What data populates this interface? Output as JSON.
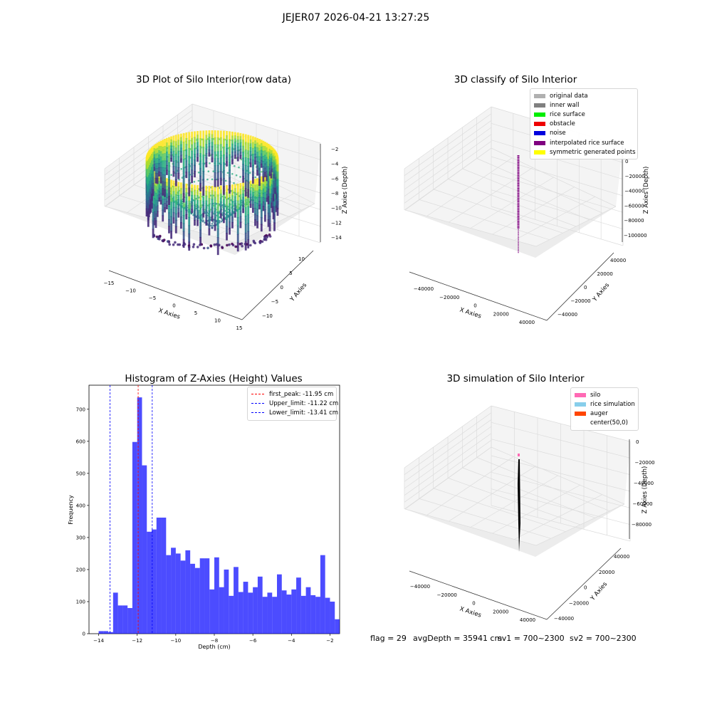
{
  "suptitle": "JEJER07 2026-04-21 13:27:25",
  "panel1": {
    "title": "3D Plot of Silo Interior(row data)",
    "xlabel": "X Axies",
    "ylabel": "Y Axies",
    "zlabel": "Z Axies (Depth)",
    "xticks": [
      "−15",
      "−10",
      "−5",
      "0",
      "5",
      "10",
      "15"
    ],
    "yticks": [
      "−10",
      "−5",
      "0",
      "5",
      "10"
    ],
    "zticks": [
      "−2",
      "−4",
      "−6",
      "−8",
      "−10",
      "−12",
      "−14"
    ],
    "colormap": "viridis"
  },
  "panel2": {
    "title": "3D classify of Silo Interior",
    "xlabel": "X Axies",
    "ylabel": "Y Axies",
    "zlabel": "Z Axies (Depth)",
    "xticks": [
      "−40000",
      "−20000",
      "0",
      "20000",
      "40000"
    ],
    "yticks": [
      "−40000",
      "−20000",
      "0",
      "20000",
      "40000"
    ],
    "zticks": [
      "0",
      "−20000",
      "−40000",
      "−60000",
      "−80000",
      "−100000"
    ],
    "legend": [
      {
        "label": "original data",
        "color": "#b0b0b0"
      },
      {
        "label": "inner wall",
        "color": "#808080"
      },
      {
        "label": "rice surface",
        "color": "#00ee00"
      },
      {
        "label": "obstacle",
        "color": "#ee0000"
      },
      {
        "label": "noise",
        "color": "#0000dd"
      },
      {
        "label": "interpolated rice surface",
        "color": "#800080"
      },
      {
        "label": "symmetric generated points",
        "color": "#ffff00"
      }
    ]
  },
  "panel4": {
    "title": "3D simulation of Silo Interior",
    "xlabel": "X Axies",
    "ylabel": "Y Axies",
    "zlabel": "Z Axies (Depth)",
    "xticks": [
      "−40000",
      "−20000",
      "0",
      "20000",
      "40000"
    ],
    "yticks": [
      "−40000",
      "−20000",
      "0",
      "20000",
      "40000"
    ],
    "zticks": [
      "0",
      "−20000",
      "−40000",
      "−60000",
      "−80000"
    ],
    "legend": [
      {
        "label": "silo",
        "color": "#ff69b4"
      },
      {
        "label": "rice simulation",
        "color": "#87ceeb"
      },
      {
        "label": "auger",
        "color": "#ff4500"
      },
      {
        "label": "center(50,0)",
        "color": "#ffffff"
      }
    ]
  },
  "footer": {
    "flag": "flag = 29",
    "avgdepth": "avgDepth = 35941 cm",
    "sv1": "sv1 = 700~2300",
    "sv2": "sv2 = 700~2300"
  },
  "chart_data": [
    {
      "type": "histogram",
      "title": "Histogram of Z-Axies (Height) Values",
      "xlabel": "Depth (cm)",
      "ylabel": "Frequency",
      "bar_color": "#0000ff",
      "bin_start": -14.0,
      "bin_width": 0.25,
      "values": [
        8,
        8,
        5,
        128,
        88,
        88,
        80,
        598,
        737,
        525,
        318,
        325,
        362,
        362,
        245,
        268,
        250,
        228,
        260,
        218,
        205,
        235,
        235,
        138,
        238,
        145,
        200,
        118,
        208,
        130,
        162,
        128,
        145,
        178,
        115,
        128,
        115,
        185,
        135,
        122,
        138,
        175,
        118,
        145,
        120,
        115,
        245,
        112,
        100,
        45
      ],
      "xlim": [
        -14.5,
        -1.5
      ],
      "ylim": [
        0,
        775
      ],
      "xticks": [
        -14,
        -12,
        -10,
        -8,
        -6,
        -4,
        -2
      ],
      "xtick_labels": [
        "−14",
        "−12",
        "−10",
        "−8",
        "−6",
        "−4",
        "−2"
      ],
      "yticks": [
        0,
        100,
        200,
        300,
        400,
        500,
        600,
        700
      ],
      "lines": [
        {
          "label": "first_peak: -11.95 cm",
          "x": -11.95,
          "color": "#ff0000"
        },
        {
          "label": "Upper_limit: -11.22 cm",
          "x": -11.22,
          "color": "#0000ff"
        },
        {
          "label": "Lower_limit: -13.41 cm",
          "x": -13.41,
          "color": "#0000ff"
        }
      ],
      "legend_position": "top-right"
    }
  ]
}
